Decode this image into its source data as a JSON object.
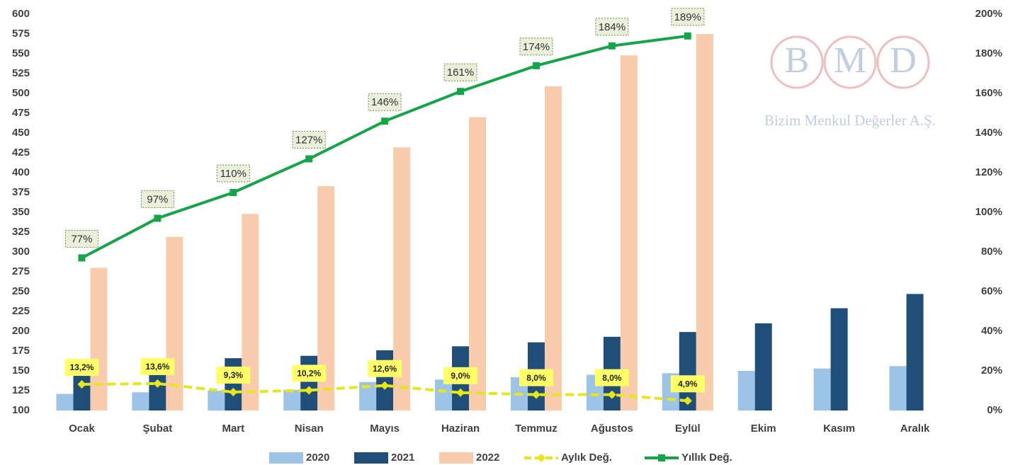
{
  "chart_data": {
    "type": "bar",
    "categories": [
      "Ocak",
      "Şubat",
      "Mart",
      "Nisan",
      "Mayıs",
      "Haziran",
      "Temmuz",
      "Ağustos",
      "Eylül",
      "Ekim",
      "Kasım",
      "Aralık"
    ],
    "series": [
      {
        "name": "2020",
        "type": "bar",
        "color": "#9dc3e6",
        "values": [
          121,
          123,
          125,
          126,
          136,
          139,
          142,
          145,
          147,
          150,
          153,
          156
        ]
      },
      {
        "name": "2021",
        "type": "bar",
        "color": "#1f4e79",
        "values": [
          158,
          162,
          166,
          169,
          176,
          181,
          186,
          193,
          199,
          210,
          229,
          247
        ]
      },
      {
        "name": "2022",
        "type": "bar",
        "color": "#f8cbad",
        "values": [
          280,
          319,
          348,
          383,
          432,
          470,
          509,
          548,
          575,
          null,
          null,
          null
        ]
      },
      {
        "name": "Aylık Değ.",
        "type": "line",
        "axis": "y2",
        "color": "#e6e619",
        "dashed": true,
        "marker": "diamond",
        "values": [
          13.2,
          13.6,
          9.3,
          10.2,
          12.6,
          9.0,
          8.0,
          8.0,
          4.9,
          null,
          null,
          null
        ],
        "value_labels": [
          "13,2%",
          "13,6%",
          "9,3%",
          "10,2%",
          "12,6%",
          "9,0%",
          "8,0%",
          "8,0%",
          "4,9%",
          null,
          null,
          null
        ]
      },
      {
        "name": "Yıllık Değ.",
        "type": "line",
        "axis": "y2",
        "color": "#13a548",
        "dashed": false,
        "marker": "square",
        "values": [
          77,
          97,
          110,
          127,
          146,
          161,
          174,
          184,
          189,
          null,
          null,
          null
        ],
        "value_labels": [
          "77%",
          "97%",
          "110%",
          "127%",
          "146%",
          "161%",
          "174%",
          "184%",
          "189%",
          null,
          null,
          null
        ]
      }
    ],
    "ylim": [
      100,
      600
    ],
    "yticks": [
      100,
      125,
      150,
      175,
      200,
      225,
      250,
      275,
      300,
      325,
      350,
      375,
      400,
      425,
      450,
      475,
      500,
      525,
      550,
      575,
      600
    ],
    "y2lim": [
      0,
      200
    ],
    "y2ticks": [
      {
        "value": 0,
        "label": "0%"
      },
      {
        "value": 20,
        "label": "20%"
      },
      {
        "value": 40,
        "label": "40%"
      },
      {
        "value": 60,
        "label": "60%"
      },
      {
        "value": 80,
        "label": "80%"
      },
      {
        "value": 100,
        "label": "100%"
      },
      {
        "value": 120,
        "label": "120%"
      },
      {
        "value": 140,
        "label": "140%"
      },
      {
        "value": 160,
        "label": "160%"
      },
      {
        "value": 180,
        "label": "180%"
      },
      {
        "value": 200,
        "label": "200%"
      }
    ],
    "legend": "bottom",
    "grid": false
  },
  "watermark": {
    "letters": [
      "B",
      "M",
      "D"
    ],
    "company": "Bizim Menkul Değerler A.Ş."
  }
}
